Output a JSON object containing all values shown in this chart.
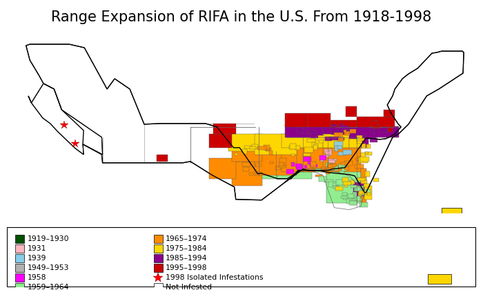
{
  "title": "Range Expansion of RIFA in the U.S. From 1918-1998",
  "title_fontsize": 15,
  "legend_col1": [
    {
      "label": "1919–1930",
      "color": "#005000"
    },
    {
      "label": "1931",
      "color": "#FFB6C1"
    },
    {
      "label": "1939",
      "color": "#87CEEB"
    },
    {
      "label": "1949–1953",
      "color": "#B0B0B0"
    },
    {
      "label": "1958",
      "color": "#FF00FF"
    },
    {
      "label": "1959–1964",
      "color": "#90EE90"
    }
  ],
  "legend_col2": [
    {
      "label": "1965–1974",
      "color": "#FF8C00"
    },
    {
      "label": "1975–1984",
      "color": "#FFD700"
    },
    {
      "label": "1985–1994",
      "color": "#8B008B"
    },
    {
      "label": "1995–1998",
      "color": "#CC0000"
    }
  ],
  "background_color": "#FFFFFF"
}
